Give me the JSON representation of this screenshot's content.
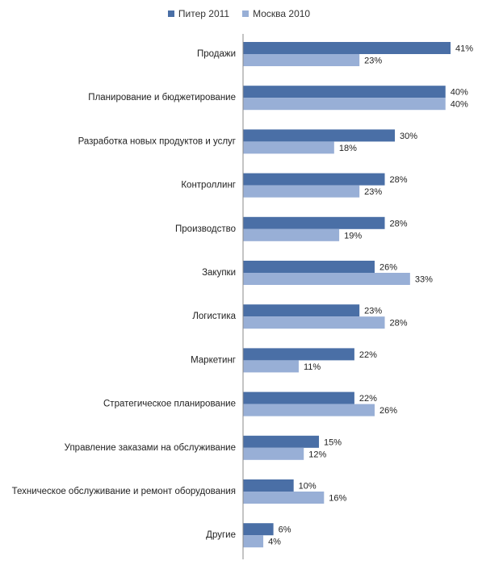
{
  "chart_data": {
    "type": "bar",
    "orientation": "horizontal",
    "categories": [
      "Продажи",
      "Планирование и бюджетирование",
      "Разработка новых продуктов и услуг",
      "Контроллинг",
      "Производство",
      "Закупки",
      "Логистика",
      "Маркетинг",
      "Стратегическое планирование",
      "Управление заказами на обслуживание",
      "Техническое обслуживание и ремонт оборудования",
      "Другие"
    ],
    "series": [
      {
        "name": "Питер 2011",
        "color": "#4a6fa6",
        "values": [
          41,
          40,
          30,
          28,
          28,
          26,
          23,
          22,
          22,
          15,
          10,
          6
        ]
      },
      {
        "name": "Москва 2010",
        "color": "#98afd6",
        "values": [
          23,
          40,
          18,
          23,
          19,
          33,
          28,
          11,
          26,
          12,
          16,
          4
        ]
      }
    ],
    "value_suffix": "%",
    "xlim": [
      0,
      41
    ],
    "grid": false,
    "legend_position": "top-center"
  }
}
